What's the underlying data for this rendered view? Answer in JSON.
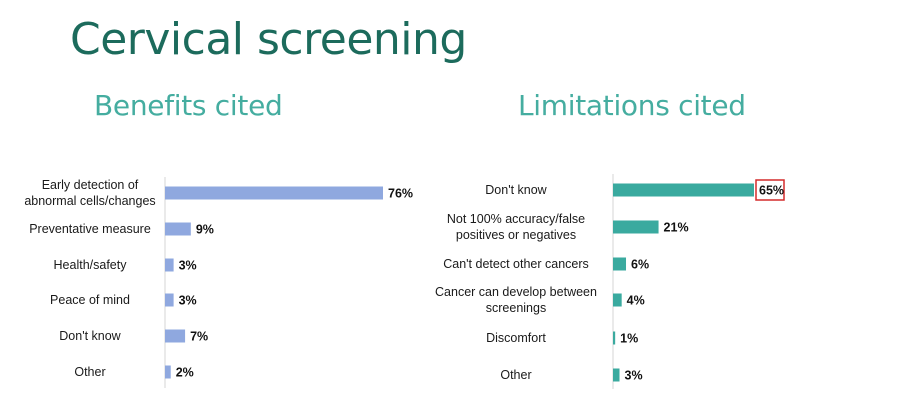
{
  "title": "Cervical screening",
  "chart_data": [
    {
      "type": "bar",
      "orientation": "horizontal",
      "title": "Benefits cited",
      "categories": [
        [
          "Early detection of",
          "abnormal cells/changes"
        ],
        [
          "Preventative measure"
        ],
        [
          "Health/safety"
        ],
        [
          "Peace of mind"
        ],
        [
          "Don't know"
        ],
        [
          "Other"
        ]
      ],
      "values": [
        76,
        9,
        3,
        3,
        7,
        2
      ],
      "value_labels": [
        "76%",
        "9%",
        "3%",
        "3%",
        "7%",
        "2%"
      ],
      "unit": "%",
      "xlim": [
        0,
        100
      ],
      "bar_color": "#8fa8df",
      "grid": false,
      "highlight_index": null
    },
    {
      "type": "bar",
      "orientation": "horizontal",
      "title": "Limitations cited",
      "categories": [
        [
          "Don't know"
        ],
        [
          "Not 100% accuracy/false",
          "positives or negatives"
        ],
        [
          "Can't detect other cancers"
        ],
        [
          "Cancer can develop between",
          "screenings"
        ],
        [
          "Discomfort"
        ],
        [
          "Other"
        ]
      ],
      "values": [
        65,
        21,
        6,
        4,
        1,
        3
      ],
      "value_labels": [
        "65%",
        "21%",
        "6%",
        "4%",
        "1%",
        "3%"
      ],
      "unit": "%",
      "xlim": [
        0,
        100
      ],
      "bar_color": "#3aaa9f",
      "grid": false,
      "highlight_index": 0,
      "highlight_color": "#d42b2b"
    }
  ]
}
